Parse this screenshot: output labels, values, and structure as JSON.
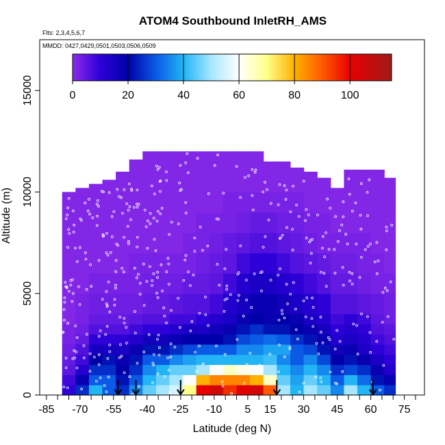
{
  "chart_data": {
    "type": "heatmap",
    "title": "ATOM4 Southbound InletRH_AMS",
    "subtitle_flights": "Flts: 2,3,4,5,6,7",
    "subtitle_dates": "MMDD: 0427,0429,0501,0503,0506,0509",
    "xlabel": "Latitude (deg N)",
    "ylabel": "Altitude (m)",
    "xlim": [
      -88,
      84
    ],
    "ylim": [
      0,
      17500
    ],
    "x_ticks": [
      -85,
      -70,
      -55,
      -40,
      -25,
      -10,
      5,
      15,
      30,
      45,
      60,
      75
    ],
    "x_tick_labels": [
      "-85",
      "-70",
      "-55",
      "-40",
      "-25",
      "-10",
      "5",
      "15",
      "30",
      "45",
      "60",
      "75"
    ],
    "y_ticks": [
      0,
      5000,
      10000,
      15000
    ],
    "y_tick_labels": [
      "0",
      "5000",
      "10000",
      "15000"
    ],
    "colorbar": {
      "range": [
        0,
        115
      ],
      "ticks": [
        0,
        20,
        40,
        60,
        80,
        100
      ],
      "tick_labels": [
        "0",
        "20",
        "40",
        "60",
        "80",
        "100"
      ],
      "stops": [
        {
          "v": 0,
          "color": "#8b2be8"
        },
        {
          "v": 10,
          "color": "#2d00d8"
        },
        {
          "v": 20,
          "color": "#0000a8"
        },
        {
          "v": 30,
          "color": "#0a5ae6"
        },
        {
          "v": 40,
          "color": "#22b4f5"
        },
        {
          "v": 50,
          "color": "#a8e6ff"
        },
        {
          "v": 60,
          "color": "#ffffff"
        },
        {
          "v": 70,
          "color": "#ffff8a"
        },
        {
          "v": 80,
          "color": "#ffb000"
        },
        {
          "v": 90,
          "color": "#ff5a00"
        },
        {
          "v": 100,
          "color": "#e80000"
        },
        {
          "v": 115,
          "color": "#9e1a1a"
        }
      ]
    },
    "grid": false,
    "lat_edges": [
      -78,
      -72,
      -66,
      -60,
      -54,
      -48,
      -42,
      -36,
      -30,
      -24,
      -18,
      -12,
      -6,
      0,
      6,
      12,
      18,
      24,
      30,
      36,
      42,
      48,
      54,
      60,
      66,
      71
    ],
    "alt_edges": [
      0,
      500,
      1000,
      1500,
      2000,
      2500,
      3000,
      3500,
      4000,
      5000,
      6000,
      7000,
      8000,
      9000,
      10000,
      11000,
      12000
    ],
    "top_altitude_by_lat": [
      10000,
      10200,
      10400,
      10600,
      11000,
      11600,
      12000,
      12000,
      12000,
      12300,
      12300,
      12300,
      12000,
      12000,
      12000,
      11500,
      11500,
      11200,
      11000,
      10700,
      10200,
      11100,
      11100,
      11100,
      10700
    ],
    "rh_grid": [
      [
        10,
        25,
        40,
        30,
        25,
        35,
        45,
        50,
        55,
        70,
        100,
        105,
        95,
        102,
        104,
        90,
        50,
        40,
        50,
        45,
        35,
        50,
        40,
        30,
        25
      ],
      [
        8,
        18,
        30,
        30,
        22,
        30,
        40,
        45,
        50,
        60,
        80,
        85,
        85,
        85,
        80,
        65,
        45,
        38,
        45,
        40,
        30,
        40,
        32,
        22,
        18
      ],
      [
        5,
        12,
        25,
        25,
        20,
        25,
        35,
        40,
        45,
        45,
        50,
        60,
        65,
        62,
        60,
        50,
        40,
        35,
        40,
        35,
        25,
        28,
        25,
        18,
        12
      ],
      [
        4,
        8,
        20,
        22,
        18,
        22,
        30,
        30,
        35,
        38,
        40,
        40,
        40,
        40,
        40,
        42,
        35,
        30,
        35,
        28,
        20,
        22,
        18,
        14,
        10
      ],
      [
        3,
        6,
        15,
        15,
        14,
        18,
        22,
        22,
        25,
        28,
        30,
        30,
        30,
        35,
        35,
        38,
        38,
        30,
        28,
        22,
        16,
        18,
        14,
        10,
        8
      ],
      [
        2,
        4,
        10,
        10,
        10,
        12,
        16,
        16,
        18,
        20,
        20,
        20,
        22,
        28,
        30,
        32,
        30,
        25,
        22,
        18,
        12,
        14,
        12,
        8,
        6
      ],
      [
        2,
        3,
        6,
        6,
        6,
        8,
        10,
        10,
        12,
        14,
        14,
        16,
        18,
        22,
        25,
        22,
        22,
        20,
        18,
        15,
        10,
        12,
        10,
        6,
        5
      ],
      [
        1,
        2,
        4,
        4,
        4,
        5,
        6,
        6,
        8,
        8,
        10,
        12,
        14,
        18,
        20,
        18,
        20,
        18,
        14,
        12,
        8,
        10,
        8,
        5,
        3
      ],
      [
        1,
        2,
        3,
        3,
        3,
        3,
        4,
        4,
        5,
        6,
        6,
        8,
        12,
        15,
        18,
        18,
        16,
        14,
        12,
        10,
        6,
        6,
        5,
        4,
        3
      ],
      [
        1,
        1,
        2,
        2,
        2,
        2,
        3,
        3,
        3,
        4,
        4,
        5,
        8,
        12,
        14,
        14,
        12,
        10,
        8,
        6,
        4,
        4,
        3,
        2,
        2
      ],
      [
        1,
        1,
        1,
        1,
        1,
        2,
        2,
        2,
        2,
        2,
        3,
        4,
        5,
        8,
        10,
        10,
        8,
        6,
        5,
        4,
        3,
        3,
        2,
        2,
        1
      ],
      [
        1,
        1,
        1,
        1,
        1,
        1,
        1,
        1,
        1,
        2,
        2,
        3,
        4,
        5,
        6,
        6,
        5,
        4,
        3,
        2,
        2,
        2,
        2,
        1,
        1
      ],
      [
        1,
        1,
        1,
        1,
        1,
        1,
        1,
        1,
        1,
        1,
        2,
        2,
        2,
        3,
        4,
        4,
        3,
        3,
        2,
        2,
        1,
        1,
        1,
        1,
        1
      ],
      [
        1,
        1,
        1,
        1,
        1,
        1,
        1,
        1,
        1,
        1,
        1,
        1,
        2,
        2,
        2,
        2,
        2,
        2,
        1,
        1,
        1,
        1,
        1,
        1,
        1
      ],
      [
        1,
        1,
        1,
        1,
        1,
        1,
        1,
        1,
        1,
        1,
        1,
        1,
        1,
        1,
        1,
        1,
        1,
        1,
        1,
        1,
        1,
        1,
        1,
        1,
        1
      ],
      [
        1,
        1,
        1,
        1,
        1,
        1,
        1,
        1,
        1,
        1,
        1,
        1,
        1,
        1,
        1,
        1,
        1,
        1,
        1,
        1,
        1,
        1,
        1,
        1,
        1
      ]
    ],
    "arrow_latitudes": [
      -53,
      -45,
      -25,
      18,
      61
    ]
  }
}
